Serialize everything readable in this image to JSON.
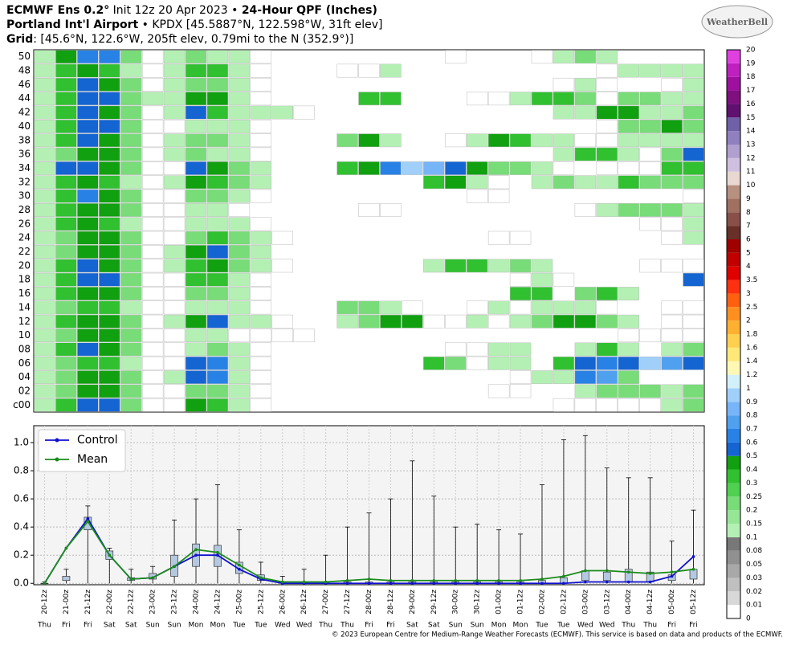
{
  "header": {
    "line1": [
      "ECMWF Ens 0.2°",
      " Init 12z 20 Apr 2023 • ",
      "24-Hour QPF (Inches)"
    ],
    "line2": [
      "Portland Int'l Airport",
      " • KPDX [45.5887°N, 122.598°W, 31ft elev]"
    ],
    "line3": [
      "Grid",
      ": [45.6°N, 122.6°W, 205ft elev, 0.79mi to the N (352.9°)]"
    ],
    "logo": "WeatherBell"
  },
  "footer": "© 2023 European Centre for Medium-Range Weather Forecasts (ECMWF). This service is based on data and products of the ECMWF.",
  "chart_data": [
    {
      "type": "heatmap",
      "rows": [
        "50",
        "48",
        "46",
        "44",
        "42",
        "40",
        "38",
        "36",
        "34",
        "32",
        "30",
        "28",
        "26",
        "24",
        "22",
        "20",
        "18",
        "16",
        "14",
        "12",
        "10",
        "08",
        "06",
        "04",
        "02",
        "c00"
      ],
      "values": [
        [
          0.1,
          0.4,
          0.6,
          0.6,
          0.2,
          0.0,
          0.1,
          0.2,
          0.1,
          0.1,
          0.0,
          null,
          null,
          null,
          null,
          null,
          null,
          null,
          null,
          0.0,
          null,
          null,
          null,
          0.0,
          0.1,
          0.2,
          0.1,
          null,
          null,
          null,
          null
        ],
        [
          0.1,
          0.3,
          0.4,
          0.3,
          0.1,
          0.0,
          0.1,
          0.3,
          0.3,
          0.1,
          0.0,
          null,
          null,
          null,
          0.0,
          0.0,
          0.1,
          null,
          null,
          null,
          null,
          null,
          null,
          null,
          null,
          null,
          0.0,
          0.1,
          0.1,
          0.1,
          0.1
        ],
        [
          0.1,
          0.3,
          0.5,
          0.4,
          0.2,
          0.0,
          0.1,
          0.2,
          0.2,
          0.1,
          0.0,
          null,
          null,
          null,
          null,
          null,
          null,
          null,
          null,
          null,
          null,
          null,
          null,
          null,
          0.0,
          0.1,
          0.0,
          null,
          null,
          0.0,
          0.1
        ],
        [
          0.1,
          0.3,
          0.5,
          0.5,
          0.2,
          0.1,
          0.1,
          0.4,
          0.4,
          0.1,
          0.0,
          null,
          null,
          null,
          null,
          0.3,
          0.3,
          null,
          null,
          null,
          0.0,
          0.0,
          0.1,
          0.3,
          0.3,
          0.2,
          0.0,
          0.2,
          0.2,
          0.1,
          0.1
        ],
        [
          0.1,
          0.3,
          0.5,
          0.4,
          0.2,
          0.0,
          0.1,
          0.5,
          0.3,
          0.1,
          0.1,
          0.1,
          0.0,
          null,
          null,
          null,
          null,
          null,
          null,
          null,
          null,
          null,
          null,
          null,
          0.1,
          0.1,
          0.4,
          0.4,
          0.1,
          0.1,
          0.2
        ],
        [
          0.1,
          0.3,
          0.5,
          0.5,
          0.2,
          0.0,
          0.0,
          0.1,
          0.1,
          0.1,
          0.0,
          null,
          null,
          null,
          null,
          null,
          null,
          null,
          null,
          null,
          null,
          null,
          null,
          null,
          null,
          null,
          0.0,
          0.2,
          0.2,
          0.4,
          0.2
        ],
        [
          0.1,
          0.3,
          0.5,
          0.4,
          0.2,
          0.0,
          0.1,
          0.2,
          0.2,
          0.1,
          0.0,
          null,
          null,
          null,
          0.2,
          0.4,
          0.1,
          null,
          null,
          0.0,
          0.1,
          0.4,
          0.3,
          0.1,
          0.1,
          0.0,
          0.0,
          0.1,
          0.1,
          0.1,
          0.1
        ],
        [
          0.1,
          0.2,
          0.4,
          0.4,
          0.2,
          0.0,
          0.1,
          0.2,
          0.1,
          0.1,
          0.0,
          null,
          null,
          null,
          null,
          null,
          null,
          null,
          null,
          null,
          null,
          null,
          null,
          null,
          0.1,
          0.3,
          0.3,
          0.1,
          0.0,
          0.2,
          0.5
        ],
        [
          0.1,
          0.5,
          0.5,
          0.4,
          0.2,
          0.0,
          0.0,
          0.5,
          0.4,
          0.2,
          0.1,
          null,
          null,
          null,
          0.3,
          0.4,
          0.6,
          0.9,
          0.8,
          0.5,
          0.4,
          0.2,
          0.2,
          0.1,
          0.0,
          null,
          0.0,
          0.0,
          0.0,
          0.3,
          0.3
        ],
        [
          0.1,
          0.3,
          0.4,
          0.3,
          0.1,
          0.0,
          0.1,
          0.4,
          0.3,
          0.2,
          0.1,
          null,
          null,
          null,
          null,
          null,
          null,
          null,
          0.3,
          0.4,
          0.1,
          0.0,
          null,
          0.1,
          0.2,
          0.1,
          0.1,
          0.3,
          0.2,
          0.2,
          0.2
        ],
        [
          0.1,
          0.3,
          0.6,
          0.4,
          0.2,
          0.0,
          0.0,
          0.2,
          0.2,
          0.1,
          0.0,
          null,
          null,
          null,
          null,
          null,
          null,
          null,
          null,
          null,
          0.0,
          0.0,
          null,
          null,
          null,
          null,
          null,
          null,
          null,
          null,
          0.0
        ],
        [
          0.1,
          0.3,
          0.4,
          0.4,
          0.2,
          0.0,
          0.0,
          0.1,
          0.1,
          0.0,
          null,
          null,
          null,
          null,
          null,
          0.0,
          0.0,
          null,
          null,
          null,
          null,
          null,
          null,
          null,
          null,
          0.0,
          0.1,
          0.2,
          0.2,
          0.2,
          0.1
        ],
        [
          0.1,
          0.3,
          0.4,
          0.3,
          0.1,
          0.0,
          0.0,
          0.1,
          0.1,
          0.1,
          0.0,
          null,
          null,
          null,
          null,
          null,
          null,
          null,
          null,
          null,
          null,
          null,
          null,
          null,
          null,
          null,
          null,
          null,
          0.0,
          0.0,
          0.1
        ],
        [
          0.1,
          0.2,
          0.4,
          0.4,
          0.2,
          0.0,
          0.0,
          0.2,
          0.3,
          0.2,
          0.1,
          0.0,
          null,
          null,
          null,
          null,
          null,
          null,
          null,
          null,
          null,
          0.0,
          0.0,
          null,
          null,
          null,
          null,
          null,
          null,
          0.0,
          0.1
        ],
        [
          0.1,
          0.2,
          0.4,
          0.4,
          0.2,
          0.0,
          0.1,
          0.4,
          0.5,
          0.2,
          0.1,
          null,
          null,
          null,
          null,
          null,
          null,
          null,
          null,
          null,
          null,
          null,
          null,
          null,
          null,
          null,
          null,
          null,
          null,
          null,
          null
        ],
        [
          0.1,
          0.3,
          0.5,
          0.4,
          0.2,
          0.0,
          0.1,
          0.3,
          0.4,
          0.2,
          0.1,
          0.0,
          null,
          null,
          null,
          null,
          null,
          null,
          0.1,
          0.3,
          0.3,
          0.1,
          0.2,
          0.1,
          null,
          null,
          null,
          null,
          0.0,
          0.0,
          0.0
        ],
        [
          0.1,
          0.3,
          0.5,
          0.5,
          0.2,
          0.0,
          0.0,
          0.3,
          0.3,
          0.1,
          0.0,
          null,
          null,
          null,
          null,
          null,
          null,
          null,
          null,
          null,
          null,
          null,
          0.0,
          0.1,
          0.0,
          null,
          null,
          null,
          null,
          null,
          0.5
        ],
        [
          0.1,
          0.3,
          0.4,
          0.4,
          0.2,
          0.0,
          0.0,
          0.2,
          0.2,
          0.1,
          0.0,
          null,
          null,
          null,
          null,
          null,
          null,
          null,
          null,
          null,
          null,
          null,
          0.3,
          0.3,
          null,
          0.2,
          0.3,
          0.1,
          null,
          null,
          null
        ],
        [
          0.1,
          0.2,
          0.3,
          0.3,
          0.1,
          0.0,
          0.0,
          0.1,
          0.1,
          0.1,
          0.0,
          null,
          null,
          null,
          0.2,
          0.2,
          0.1,
          0.0,
          null,
          null,
          0.0,
          0.1,
          0.0,
          0.1,
          0.1,
          0.1,
          0.0,
          null,
          null,
          0.0,
          0.0
        ],
        [
          0.1,
          0.3,
          0.4,
          0.4,
          0.2,
          0.0,
          0.1,
          0.4,
          0.5,
          0.1,
          0.1,
          0.0,
          null,
          null,
          0.1,
          0.2,
          0.4,
          0.4,
          0.0,
          0.0,
          0.1,
          0.0,
          0.1,
          0.2,
          0.4,
          0.4,
          0.2,
          0.1,
          null,
          0.0,
          0.0
        ],
        [
          0.1,
          0.2,
          0.4,
          0.4,
          0.2,
          0.0,
          0.0,
          0.1,
          0.1,
          0.0,
          0.0,
          0.0,
          0.0,
          null,
          null,
          null,
          null,
          null,
          null,
          null,
          null,
          null,
          null,
          null,
          null,
          null,
          null,
          0.0,
          0.0,
          0.0,
          0.0
        ],
        [
          0.1,
          0.3,
          0.5,
          0.4,
          0.2,
          0.0,
          0.0,
          0.1,
          0.2,
          0.1,
          0.0,
          null,
          null,
          null,
          null,
          null,
          null,
          null,
          null,
          0.0,
          0.0,
          0.1,
          0.1,
          null,
          null,
          0.1,
          0.3,
          0.1,
          null,
          0.1,
          0.2
        ],
        [
          0.1,
          0.2,
          0.3,
          0.3,
          0.1,
          0.0,
          0.0,
          0.5,
          0.6,
          0.1,
          0.0,
          null,
          null,
          null,
          null,
          null,
          null,
          null,
          0.3,
          0.2,
          0.0,
          0.1,
          0.1,
          null,
          0.3,
          0.5,
          0.6,
          0.5,
          0.9,
          0.7,
          0.5
        ],
        [
          0.1,
          0.2,
          0.4,
          0.4,
          0.2,
          0.0,
          0.1,
          0.5,
          0.6,
          0.1,
          0.0,
          null,
          null,
          null,
          null,
          null,
          null,
          null,
          null,
          null,
          null,
          null,
          0.0,
          0.1,
          0.1,
          0.6,
          0.7,
          0.2,
          null,
          null,
          null
        ],
        [
          0.1,
          0.2,
          0.4,
          0.4,
          0.2,
          0.0,
          0.0,
          0.2,
          0.2,
          0.1,
          0.0,
          null,
          null,
          null,
          null,
          null,
          null,
          null,
          null,
          null,
          null,
          0.0,
          0.0,
          null,
          null,
          0.1,
          0.2,
          0.2,
          0.2,
          0.1,
          0.2
        ],
        [
          0.1,
          0.3,
          0.5,
          0.5,
          0.2,
          0.0,
          0.0,
          0.4,
          0.3,
          0.1,
          0.0,
          null,
          null,
          null,
          null,
          null,
          null,
          null,
          null,
          null,
          null,
          null,
          null,
          null,
          0.0,
          0.0,
          0.0,
          0.0,
          0.0,
          0.1,
          0.2
        ]
      ],
      "colorbar": {
        "levels": [
          0,
          0.01,
          0.02,
          0.03,
          0.05,
          0.08,
          0.1,
          0.15,
          0.2,
          0.25,
          0.3,
          0.4,
          0.5,
          0.6,
          0.7,
          0.8,
          0.9,
          1,
          1.2,
          1.4,
          1.6,
          1.8,
          2,
          2.5,
          3,
          3.5,
          4,
          5,
          6,
          7,
          8,
          9,
          10,
          11,
          12,
          13,
          14,
          15,
          16,
          17,
          18,
          19,
          20
        ],
        "colors": [
          "#ffffff",
          "#d8d8d8",
          "#c0c0c0",
          "#a8a8a8",
          "#909090",
          "#787878",
          "#b4f0b4",
          "#96e696",
          "#78dc78",
          "#50d050",
          "#30c030",
          "#10a010",
          "#1464d2",
          "#2882e6",
          "#50a0f0",
          "#78b4f8",
          "#a0d0fa",
          "#d2f0fa",
          "#fff8b4",
          "#ffe878",
          "#ffd050",
          "#ffb030",
          "#ff9020",
          "#ff6010",
          "#ff3010",
          "#e00000",
          "#c00000",
          "#a00000",
          "#683028",
          "#885048",
          "#a07060",
          "#b89080",
          "#e8d8d0",
          "#d0c0e0",
          "#b0a0d0",
          "#9080c0",
          "#7060a8",
          "#601070",
          "#801080",
          "#a010a0",
          "#c020c0",
          "#e040e0"
        ]
      }
    },
    {
      "type": "line",
      "categories": [
        "20-12z",
        "21-00z",
        "21-12z",
        "22-00z",
        "22-12z",
        "23-00z",
        "23-12z",
        "24-00z",
        "24-12z",
        "25-00z",
        "25-12z",
        "26-00z",
        "26-12z",
        "27-00z",
        "27-12z",
        "28-00z",
        "28-12z",
        "29-00z",
        "29-12z",
        "30-00z",
        "30-12z",
        "01-00z",
        "01-12z",
        "02-00z",
        "02-12z",
        "03-00z",
        "03-12z",
        "04-00z",
        "04-12z",
        "05-00z",
        "05-12z"
      ],
      "day_labels": [
        "Thu",
        "Fri",
        "Fri",
        "Sat",
        "Sat",
        "Sun",
        "Sun",
        "Mon",
        "Mon",
        "Tue",
        "Tue",
        "Wed",
        "Wed",
        "Thu",
        "Thu",
        "Fri",
        "Fri",
        "Sat",
        "Sat",
        "Sun",
        "Sun",
        "Mon",
        "Mon",
        "Tue",
        "Tue",
        "Wed",
        "Wed",
        "Thu",
        "Thu",
        "Fri",
        "Fri"
      ],
      "series": [
        {
          "name": "Control",
          "color": "#1010d0",
          "values": [
            0,
            0.25,
            0.46,
            0.2,
            0.03,
            0.04,
            0.12,
            0.2,
            0.2,
            0.1,
            0.03,
            0,
            0,
            0,
            0,
            0,
            0,
            0,
            0,
            0,
            0,
            0,
            0,
            0,
            0,
            0.01,
            0.01,
            0.01,
            0.01,
            0.05,
            0.19
          ]
        },
        {
          "name": "Mean",
          "color": "#1a8c1a",
          "values": [
            0,
            0.25,
            0.44,
            0.2,
            0.03,
            0.04,
            0.12,
            0.24,
            0.22,
            0.13,
            0.04,
            0.01,
            0.01,
            0.01,
            0.02,
            0.03,
            0.02,
            0.02,
            0.02,
            0.02,
            0.02,
            0.02,
            0.02,
            0.03,
            0.05,
            0.09,
            0.09,
            0.08,
            0.07,
            0.08,
            0.1
          ]
        }
      ],
      "boxes": {
        "q1": [
          0,
          0.02,
          0.38,
          0.17,
          0.02,
          0.03,
          0.05,
          0.12,
          0.12,
          0.07,
          0.02,
          0,
          0,
          0,
          0,
          0,
          0,
          0,
          0,
          0,
          0,
          0,
          0,
          0,
          0,
          0.02,
          0.02,
          0.01,
          0.01,
          0.02,
          0.03
        ],
        "q3": [
          0,
          0.05,
          0.47,
          0.23,
          0.04,
          0.07,
          0.2,
          0.28,
          0.27,
          0.15,
          0.06,
          0.01,
          0.01,
          0.01,
          0.01,
          0.01,
          0.01,
          0.01,
          0.01,
          0.01,
          0.01,
          0.01,
          0.01,
          0.02,
          0.04,
          0.09,
          0.08,
          0.1,
          0.08,
          0.06,
          0.1
        ],
        "max": [
          0.01,
          0.1,
          0.55,
          0.25,
          0.1,
          0.12,
          0.45,
          0.6,
          0.7,
          0.38,
          0.15,
          0.05,
          0.1,
          0.2,
          0.4,
          0.5,
          0.6,
          0.87,
          0.62,
          0.4,
          0.42,
          0.38,
          0.35,
          0.7,
          1.02,
          1.05,
          0.82,
          0.75,
          0.75,
          0.3,
          0.52
        ],
        "color": "#b4c8e0"
      },
      "ylim": [
        -0.01,
        1.12
      ],
      "yticks": [
        {
          "value": 0,
          "label": "0.0"
        },
        0.2,
        0.4,
        0.6,
        0.8,
        {
          "value": 1,
          "label": "1.0"
        }
      ],
      "grid": true,
      "legend": "upper left"
    }
  ]
}
